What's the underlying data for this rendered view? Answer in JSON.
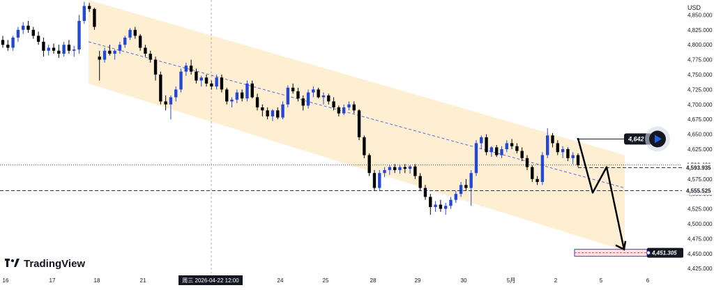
{
  "currency": "USD",
  "watermark": "TradingView",
  "crosshair_label": "周三 2026-04-22   12:00",
  "colors": {
    "up": "#2447d8",
    "down": "#000000",
    "channel": "#fde9c4",
    "midline": "#5b6bd9",
    "axis_text": "#131722",
    "tag_dark": "#131722",
    "play": "#1f63e5"
  },
  "chart_data": {
    "type": "candlestick",
    "y_axis": {
      "ticks": [
        "4,850.000",
        "4,825.000",
        "4,800.000",
        "4,775.000",
        "4,750.000",
        "4,725.000",
        "4,700.000",
        "4,675.000",
        "4,650.000",
        "4,625.000",
        "4,600.000",
        "4,575.000",
        "4,550.000",
        "4,525.000",
        "4,500.000",
        "4,475.000",
        "4,450.000",
        "4,425.000"
      ],
      "tick_values": [
        4850,
        4825,
        4800,
        4775,
        4750,
        4725,
        4700,
        4675,
        4650,
        4625,
        4600,
        4575,
        4550,
        4525,
        4500,
        4475,
        4450,
        4425
      ],
      "range": [
        4417,
        4875
      ]
    },
    "x_axis": {
      "labels": [
        "16",
        "17",
        "18",
        "21",
        "24",
        "25",
        "28",
        "29",
        "30",
        "5月",
        "2",
        "5",
        "6"
      ]
    },
    "price_labels": {
      "current_dotted": "4,598.430",
      "last": "4,593.935",
      "support": "4,555.525",
      "target_up": "4,642",
      "target_down": "4,451.305"
    },
    "price_values": {
      "current_dotted": 4598.43,
      "last": 4593.935,
      "support": 4555.525,
      "target_up": 4642,
      "target_down": 4451.305
    },
    "channel": {
      "upper_start": 4875,
      "upper_end": 4615,
      "mid_start": 4805,
      "mid_end": 4560,
      "lower_start": 4735,
      "lower_end": 4455
    },
    "projection_path": [
      4643,
      4552,
      4595,
      4457
    ],
    "candles": [
      {
        "o": 4808,
        "h": 4815,
        "l": 4795,
        "c": 4800
      },
      {
        "o": 4800,
        "h": 4808,
        "l": 4790,
        "c": 4795
      },
      {
        "o": 4795,
        "h": 4815,
        "l": 4790,
        "c": 4812
      },
      {
        "o": 4812,
        "h": 4830,
        "l": 4805,
        "c": 4825
      },
      {
        "o": 4825,
        "h": 4838,
        "l": 4818,
        "c": 4832
      },
      {
        "o": 4832,
        "h": 4840,
        "l": 4820,
        "c": 4825
      },
      {
        "o": 4825,
        "h": 4830,
        "l": 4810,
        "c": 4815
      },
      {
        "o": 4815,
        "h": 4822,
        "l": 4800,
        "c": 4805
      },
      {
        "o": 4805,
        "h": 4812,
        "l": 4780,
        "c": 4790
      },
      {
        "o": 4790,
        "h": 4800,
        "l": 4782,
        "c": 4795
      },
      {
        "o": 4795,
        "h": 4802,
        "l": 4785,
        "c": 4790
      },
      {
        "o": 4790,
        "h": 4800,
        "l": 4778,
        "c": 4785
      },
      {
        "o": 4785,
        "h": 4805,
        "l": 4780,
        "c": 4800
      },
      {
        "o": 4800,
        "h": 4808,
        "l": 4785,
        "c": 4790
      },
      {
        "o": 4790,
        "h": 4798,
        "l": 4780,
        "c": 4792
      },
      {
        "o": 4792,
        "h": 4850,
        "l": 4785,
        "c": 4840
      },
      {
        "o": 4840,
        "h": 4872,
        "l": 4835,
        "c": 4865
      },
      {
        "o": 4865,
        "h": 4870,
        "l": 4855,
        "c": 4860
      },
      {
        "o": 4860,
        "h": 4862,
        "l": 4825,
        "c": 4830
      },
      {
        "o": 4780,
        "h": 4790,
        "l": 4740,
        "c": 4775
      },
      {
        "o": 4775,
        "h": 4795,
        "l": 4770,
        "c": 4790
      },
      {
        "o": 4790,
        "h": 4800,
        "l": 4782,
        "c": 4785
      },
      {
        "o": 4785,
        "h": 4792,
        "l": 4775,
        "c": 4790
      },
      {
        "o": 4790,
        "h": 4805,
        "l": 4785,
        "c": 4800
      },
      {
        "o": 4800,
        "h": 4815,
        "l": 4795,
        "c": 4812
      },
      {
        "o": 4812,
        "h": 4828,
        "l": 4808,
        "c": 4825
      },
      {
        "o": 4825,
        "h": 4830,
        "l": 4810,
        "c": 4815
      },
      {
        "o": 4815,
        "h": 4818,
        "l": 4790,
        "c": 4795
      },
      {
        "o": 4795,
        "h": 4800,
        "l": 4780,
        "c": 4785
      },
      {
        "o": 4785,
        "h": 4790,
        "l": 4770,
        "c": 4775
      },
      {
        "o": 4775,
        "h": 4780,
        "l": 4740,
        "c": 4750
      },
      {
        "o": 4750,
        "h": 4755,
        "l": 4700,
        "c": 4705
      },
      {
        "o": 4705,
        "h": 4715,
        "l": 4690,
        "c": 4700
      },
      {
        "o": 4700,
        "h": 4715,
        "l": 4675,
        "c": 4712
      },
      {
        "o": 4712,
        "h": 4730,
        "l": 4705,
        "c": 4725
      },
      {
        "o": 4725,
        "h": 4760,
        "l": 4720,
        "c": 4755
      },
      {
        "o": 4755,
        "h": 4770,
        "l": 4748,
        "c": 4765
      },
      {
        "o": 4765,
        "h": 4775,
        "l": 4750,
        "c": 4755
      },
      {
        "o": 4755,
        "h": 4760,
        "l": 4735,
        "c": 4740
      },
      {
        "o": 4740,
        "h": 4748,
        "l": 4730,
        "c": 4745
      },
      {
        "o": 4745,
        "h": 4750,
        "l": 4730,
        "c": 4735
      },
      {
        "o": 4735,
        "h": 4740,
        "l": 4725,
        "c": 4730
      },
      {
        "o": 4730,
        "h": 4750,
        "l": 4725,
        "c": 4745
      },
      {
        "o": 4745,
        "h": 4750,
        "l": 4720,
        "c": 4725
      },
      {
        "o": 4725,
        "h": 4728,
        "l": 4700,
        "c": 4705
      },
      {
        "o": 4705,
        "h": 4712,
        "l": 4695,
        "c": 4708
      },
      {
        "o": 4708,
        "h": 4725,
        "l": 4702,
        "c": 4720
      },
      {
        "o": 4720,
        "h": 4725,
        "l": 4705,
        "c": 4710
      },
      {
        "o": 4710,
        "h": 4740,
        "l": 4705,
        "c": 4735
      },
      {
        "o": 4735,
        "h": 4740,
        "l": 4710,
        "c": 4712
      },
      {
        "o": 4712,
        "h": 4718,
        "l": 4690,
        "c": 4695
      },
      {
        "o": 4695,
        "h": 4700,
        "l": 4680,
        "c": 4690
      },
      {
        "o": 4690,
        "h": 4695,
        "l": 4675,
        "c": 4680
      },
      {
        "o": 4680,
        "h": 4692,
        "l": 4672,
        "c": 4690
      },
      {
        "o": 4690,
        "h": 4695,
        "l": 4675,
        "c": 4678
      },
      {
        "o": 4678,
        "h": 4705,
        "l": 4675,
        "c": 4700
      },
      {
        "o": 4700,
        "h": 4732,
        "l": 4695,
        "c": 4728
      },
      {
        "o": 4728,
        "h": 4735,
        "l": 4718,
        "c": 4722
      },
      {
        "o": 4722,
        "h": 4728,
        "l": 4705,
        "c": 4710
      },
      {
        "o": 4710,
        "h": 4715,
        "l": 4690,
        "c": 4698
      },
      {
        "o": 4698,
        "h": 4725,
        "l": 4693,
        "c": 4720
      },
      {
        "o": 4720,
        "h": 4730,
        "l": 4712,
        "c": 4725
      },
      {
        "o": 4725,
        "h": 4728,
        "l": 4710,
        "c": 4712
      },
      {
        "o": 4712,
        "h": 4720,
        "l": 4700,
        "c": 4715
      },
      {
        "o": 4715,
        "h": 4718,
        "l": 4700,
        "c": 4705
      },
      {
        "o": 4705,
        "h": 4712,
        "l": 4690,
        "c": 4695
      },
      {
        "o": 4695,
        "h": 4698,
        "l": 4680,
        "c": 4685
      },
      {
        "o": 4685,
        "h": 4700,
        "l": 4682,
        "c": 4695
      },
      {
        "o": 4695,
        "h": 4705,
        "l": 4690,
        "c": 4700
      },
      {
        "o": 4700,
        "h": 4705,
        "l": 4685,
        "c": 4690
      },
      {
        "o": 4690,
        "h": 4692,
        "l": 4640,
        "c": 4645
      },
      {
        "o": 4645,
        "h": 4648,
        "l": 4610,
        "c": 4615
      },
      {
        "o": 4615,
        "h": 4618,
        "l": 4580,
        "c": 4585
      },
      {
        "o": 4585,
        "h": 4590,
        "l": 4555,
        "c": 4560
      },
      {
        "o": 4560,
        "h": 4590,
        "l": 4555,
        "c": 4585
      },
      {
        "o": 4585,
        "h": 4595,
        "l": 4578,
        "c": 4590
      },
      {
        "o": 4590,
        "h": 4598,
        "l": 4582,
        "c": 4595
      },
      {
        "o": 4595,
        "h": 4600,
        "l": 4585,
        "c": 4590
      },
      {
        "o": 4590,
        "h": 4598,
        "l": 4584,
        "c": 4595
      },
      {
        "o": 4595,
        "h": 4600,
        "l": 4585,
        "c": 4592
      },
      {
        "o": 4592,
        "h": 4598,
        "l": 4584,
        "c": 4596
      },
      {
        "o": 4596,
        "h": 4600,
        "l": 4575,
        "c": 4580
      },
      {
        "o": 4580,
        "h": 4585,
        "l": 4555,
        "c": 4560
      },
      {
        "o": 4560,
        "h": 4565,
        "l": 4540,
        "c": 4545
      },
      {
        "o": 4545,
        "h": 4550,
        "l": 4515,
        "c": 4528
      },
      {
        "o": 4528,
        "h": 4538,
        "l": 4520,
        "c": 4532
      },
      {
        "o": 4532,
        "h": 4540,
        "l": 4520,
        "c": 4525
      },
      {
        "o": 4525,
        "h": 4535,
        "l": 4515,
        "c": 4530
      },
      {
        "o": 4530,
        "h": 4545,
        "l": 4525,
        "c": 4540
      },
      {
        "o": 4540,
        "h": 4555,
        "l": 4535,
        "c": 4550
      },
      {
        "o": 4550,
        "h": 4570,
        "l": 4545,
        "c": 4565
      },
      {
        "o": 4565,
        "h": 4575,
        "l": 4555,
        "c": 4560
      },
      {
        "o": 4560,
        "h": 4590,
        "l": 4530,
        "c": 4585
      },
      {
        "o": 4585,
        "h": 4640,
        "l": 4580,
        "c": 4635
      },
      {
        "o": 4635,
        "h": 4648,
        "l": 4625,
        "c": 4645
      },
      {
        "o": 4645,
        "h": 4650,
        "l": 4615,
        "c": 4620
      },
      {
        "o": 4620,
        "h": 4630,
        "l": 4612,
        "c": 4628
      },
      {
        "o": 4628,
        "h": 4632,
        "l": 4612,
        "c": 4615
      },
      {
        "o": 4615,
        "h": 4630,
        "l": 4610,
        "c": 4625
      },
      {
        "o": 4625,
        "h": 4640,
        "l": 4620,
        "c": 4635
      },
      {
        "o": 4635,
        "h": 4642,
        "l": 4625,
        "c": 4630
      },
      {
        "o": 4630,
        "h": 4635,
        "l": 4618,
        "c": 4622
      },
      {
        "o": 4622,
        "h": 4628,
        "l": 4605,
        "c": 4610
      },
      {
        "o": 4610,
        "h": 4615,
        "l": 4590,
        "c": 4595
      },
      {
        "o": 4595,
        "h": 4598,
        "l": 4570,
        "c": 4575
      },
      {
        "o": 4575,
        "h": 4580,
        "l": 4565,
        "c": 4570
      },
      {
        "o": 4570,
        "h": 4620,
        "l": 4565,
        "c": 4615
      },
      {
        "o": 4615,
        "h": 4660,
        "l": 4610,
        "c": 4648
      },
      {
        "o": 4648,
        "h": 4652,
        "l": 4628,
        "c": 4635
      },
      {
        "o": 4635,
        "h": 4640,
        "l": 4615,
        "c": 4620
      },
      {
        "o": 4620,
        "h": 4630,
        "l": 4610,
        "c": 4625
      },
      {
        "o": 4625,
        "h": 4628,
        "l": 4605,
        "c": 4610
      },
      {
        "o": 4610,
        "h": 4620,
        "l": 4600,
        "c": 4615
      },
      {
        "o": 4615,
        "h": 4618,
        "l": 4595,
        "c": 4598
      }
    ]
  }
}
